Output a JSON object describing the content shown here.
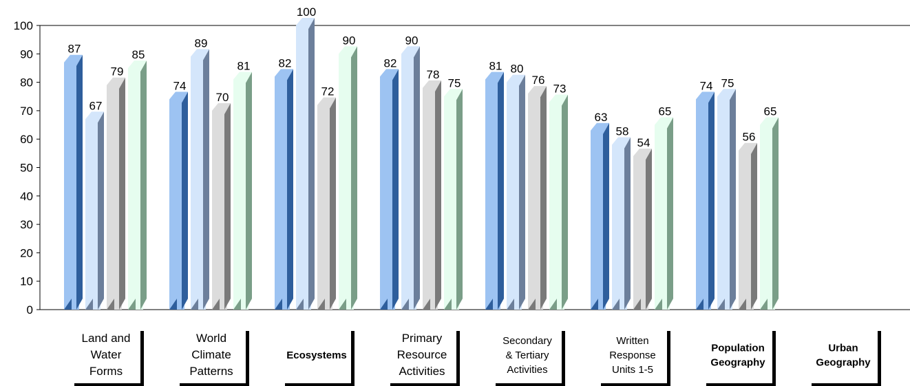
{
  "chart_data": {
    "type": "bar",
    "title": "",
    "xlabel": "",
    "ylabel": "",
    "ylim": [
      0,
      100
    ],
    "yticks": [
      0,
      10,
      20,
      30,
      40,
      50,
      60,
      70,
      80,
      90,
      100
    ],
    "categories": [
      {
        "lines": [
          "Land and",
          "Water",
          "Forms"
        ],
        "style": "normal"
      },
      {
        "lines": [
          "World",
          "Climate",
          "Patterns"
        ],
        "style": "normal"
      },
      {
        "lines": [
          "Ecosystems"
        ],
        "style": "bold"
      },
      {
        "lines": [
          "Primary",
          "Resource",
          "Activities"
        ],
        "style": "normal"
      },
      {
        "lines": [
          "Secondary",
          "& Tertiary",
          "Activities"
        ],
        "style": "small"
      },
      {
        "lines": [
          "Written",
          "Response",
          "Units 1-5"
        ],
        "style": "small"
      },
      {
        "lines": [
          "Population",
          "Geography"
        ],
        "style": "bold"
      },
      {
        "lines": [
          "Urban",
          "Geography"
        ],
        "style": "bold"
      }
    ],
    "series": [
      {
        "values": [
          87,
          74,
          82,
          82,
          81,
          63,
          74,
          null
        ]
      },
      {
        "values": [
          67,
          89,
          100,
          90,
          80,
          58,
          75,
          null
        ]
      },
      {
        "values": [
          79,
          70,
          72,
          78,
          76,
          54,
          56,
          null
        ]
      },
      {
        "values": [
          85,
          81,
          90,
          75,
          73,
          65,
          65,
          null
        ]
      }
    ],
    "colors": [
      {
        "front": "#9dc3f2",
        "side": "#2e5e9c"
      },
      {
        "front": "#d4e6fb",
        "side": "#6c7f9b"
      },
      {
        "front": "#dcdcdc",
        "side": "#7a7a7a"
      },
      {
        "front": "#e6fdef",
        "side": "#7a9e88"
      }
    ],
    "grid": false,
    "legend": "none"
  }
}
